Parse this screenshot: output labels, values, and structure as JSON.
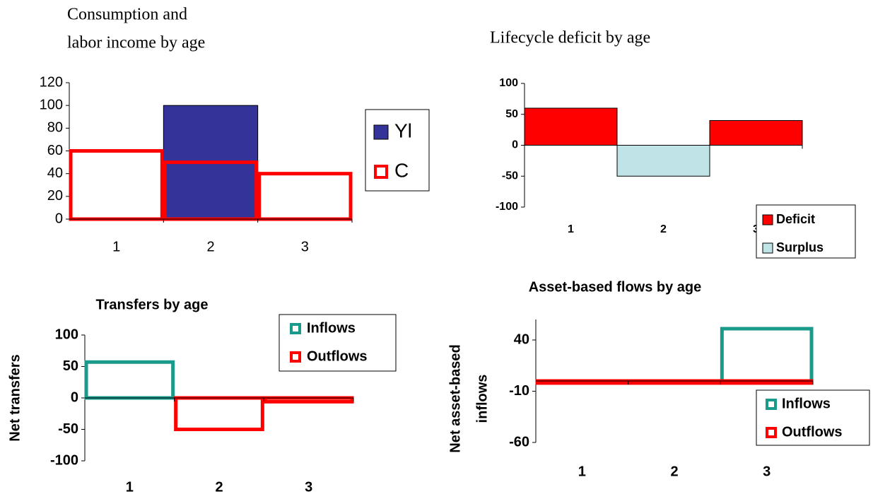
{
  "chart_data": [
    {
      "type": "bar",
      "title": [
        "Consumption and",
        "labor income by age"
      ],
      "categories": [
        "1",
        "2",
        "3"
      ],
      "series": [
        {
          "name": "Yl",
          "color": "#333399",
          "style": "filled",
          "values": [
            0,
            100,
            0
          ]
        },
        {
          "name": "C",
          "color": "#ff0000",
          "style": "outline",
          "values": [
            60,
            50,
            40
          ]
        }
      ],
      "ylim": [
        0,
        120
      ],
      "yticks": [
        0,
        20,
        40,
        60,
        80,
        100,
        120
      ],
      "legend": "right"
    },
    {
      "type": "bar",
      "title": "Lifecycle deficit by age",
      "categories": [
        "1",
        "2",
        "3"
      ],
      "series": [
        {
          "name": "Deficit",
          "color": "#ff0000",
          "style": "filled",
          "values": [
            60,
            null,
            40
          ]
        },
        {
          "name": "Surplus",
          "color": "#bfe3e6",
          "style": "filled",
          "values": [
            null,
            -50,
            null
          ]
        }
      ],
      "ylim": [
        -100,
        100
      ],
      "yticks": [
        -100,
        -50,
        0,
        50,
        100
      ],
      "legend": "lower right"
    },
    {
      "type": "bar",
      "title": "Transfers by age",
      "ylabel": [
        "Net transfers"
      ],
      "categories": [
        "1",
        "2",
        "3"
      ],
      "series": [
        {
          "name": "Inflows",
          "color": "#1a9a8a",
          "style": "outline",
          "values": [
            57,
            0,
            0
          ]
        },
        {
          "name": "Outflows",
          "color": "#ff0000",
          "style": "outline",
          "values": [
            0,
            -50,
            -6
          ]
        }
      ],
      "ylim": [
        -100,
        100
      ],
      "yticks": [
        -100,
        -50,
        0,
        50,
        100
      ],
      "legend": "upper right"
    },
    {
      "type": "bar",
      "title": "Asset-based flows by age",
      "ylabel": [
        "Net asset-based",
        "inflows"
      ],
      "categories": [
        "1",
        "2",
        "3"
      ],
      "series": [
        {
          "name": "Inflows",
          "color": "#1a9a8a",
          "style": "outline",
          "values": [
            0,
            0,
            51
          ]
        },
        {
          "name": "Outflows",
          "color": "#ff0000",
          "style": "outline",
          "values": [
            -2,
            -2,
            -2
          ]
        }
      ],
      "ylim": [
        -60,
        60
      ],
      "yticks": [
        -60,
        -10,
        40
      ],
      "legend": "lower right"
    }
  ]
}
